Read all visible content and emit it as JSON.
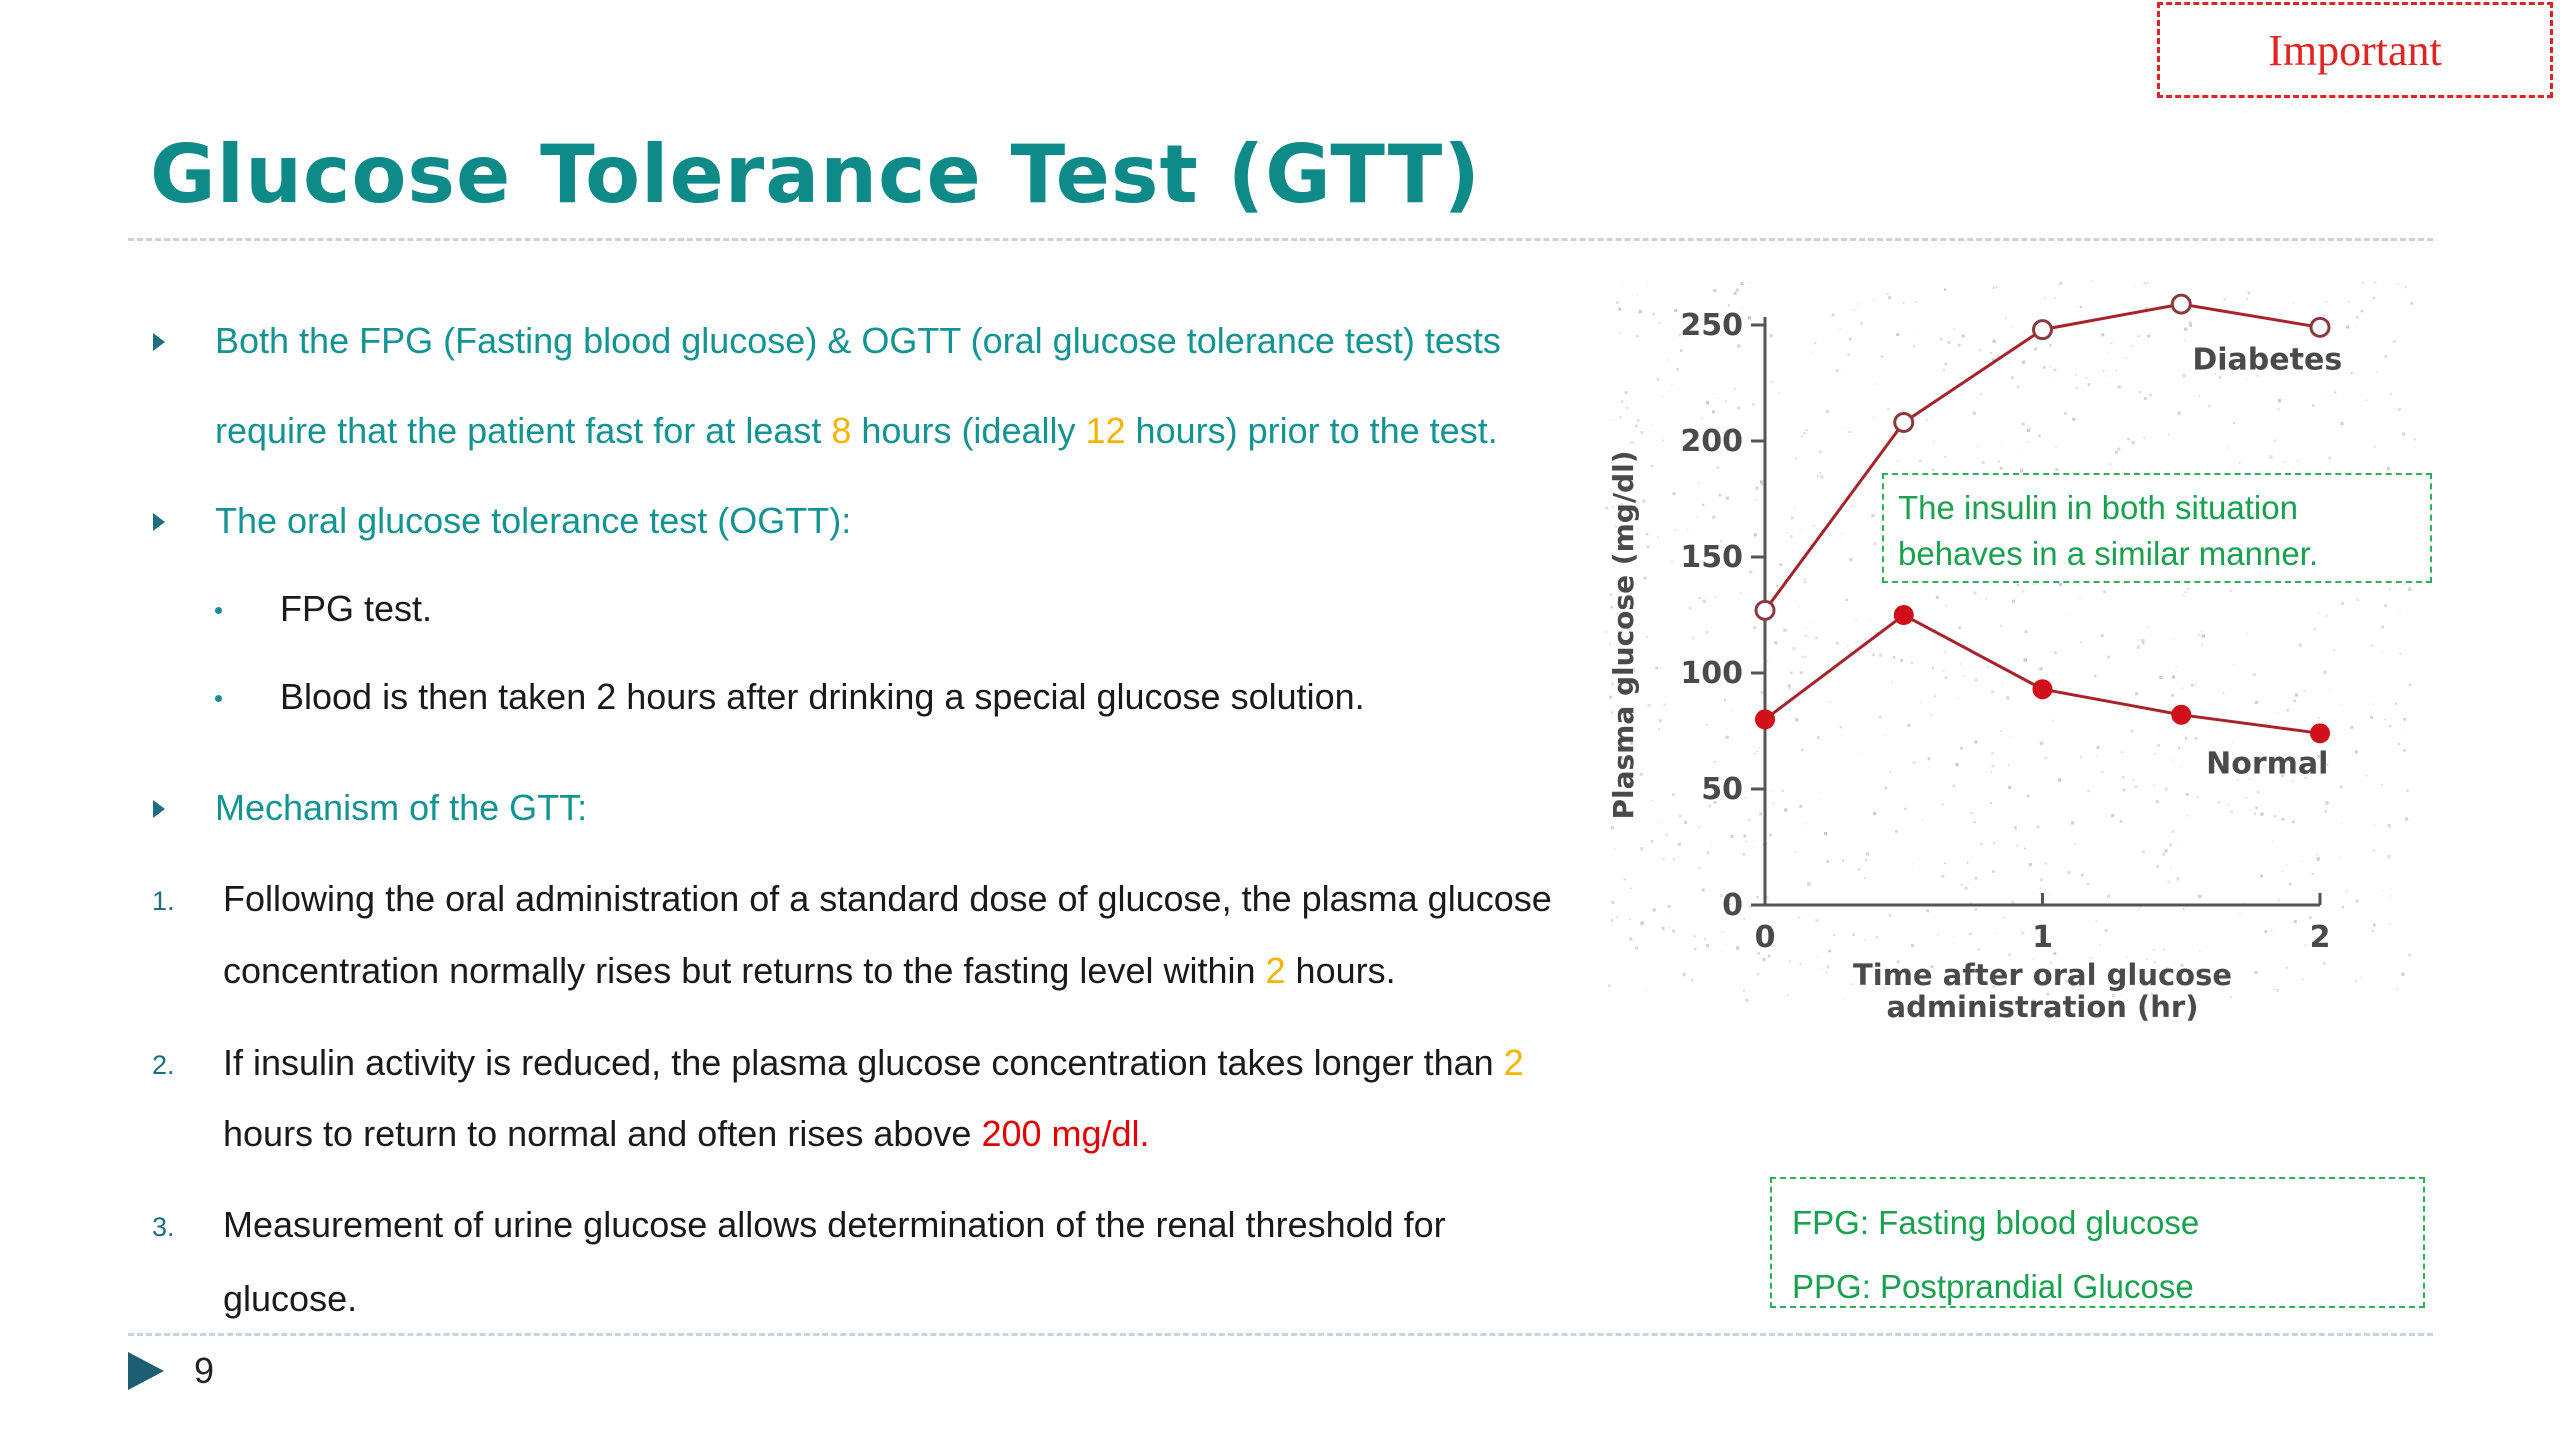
{
  "badge": "Important",
  "title": "Glucose Tolerance Test (GTT)",
  "bullets": {
    "b1_line1": "Both the FPG (Fasting blood glucose) & OGTT (oral glucose tolerance test)  tests",
    "b1_line2_a": "require that the patient fast for at least ",
    "b1_line2_h1": "8",
    "b1_line2_b": " hours (ideally ",
    "b1_line2_h2": "12",
    "b1_line2_c": " hours) prior to the test.",
    "b2": "The oral glucose tolerance test (OGTT):",
    "sub1": "FPG test.",
    "sub2": "Blood is then taken 2 hours after drinking a special glucose solution.",
    "b3": "Mechanism of the GTT:"
  },
  "numbered": {
    "n1": "1.",
    "n1_line1": "Following the oral administration of a standard dose of glucose, the plasma glucose",
    "n1_line2_a": "concentration normally rises but returns to the fasting level within ",
    "n1_line2_h": "2",
    "n1_line2_b": " hours.",
    "n2": "2.",
    "n2_line1_a": "If insulin activity is reduced, the plasma glucose concentration takes longer than ",
    "n2_line1_h": "2",
    "n2_line2_a": "hours to return to normal and often rises above ",
    "n2_line2_h": "200 mg/dl.",
    "n3": "3.",
    "n3_line1": "Measurement of urine glucose allows determination of the renal threshold for",
    "n3_line2": "glucose."
  },
  "note": {
    "line1": "The insulin in both situation",
    "line2": "behaves in a similar manner."
  },
  "legend": {
    "fpg": "FPG: Fasting blood glucose",
    "ppg": "PPG: Postprandial Glucose"
  },
  "page_number": "9",
  "colors": {
    "teal": "#139492",
    "highlight_yellow": "#f5b400",
    "highlight_red": "#e60000",
    "note_green": "#1aa14f",
    "series": "#a8222a"
  },
  "chart_data": {
    "type": "line",
    "ylabel": "Plasma glucose (mg/dl)",
    "xlabel_line1": "Time after oral glucose",
    "xlabel_line2": "administration (hr)",
    "xlim": [
      0,
      2
    ],
    "ylim": [
      0,
      250
    ],
    "x_ticks": [
      "0",
      "1",
      "2"
    ],
    "y_ticks": [
      "0",
      "50",
      "100",
      "150",
      "200",
      "250"
    ],
    "series": [
      {
        "name": "Diabetes",
        "marker": "open",
        "x": [
          0,
          0.5,
          1,
          1.5,
          2
        ],
        "y": [
          127,
          208,
          248,
          259,
          249
        ]
      },
      {
        "name": "Normal",
        "marker": "filled",
        "x": [
          0,
          0.5,
          1,
          1.5,
          2
        ],
        "y": [
          80,
          125,
          93,
          82,
          74
        ]
      }
    ]
  }
}
